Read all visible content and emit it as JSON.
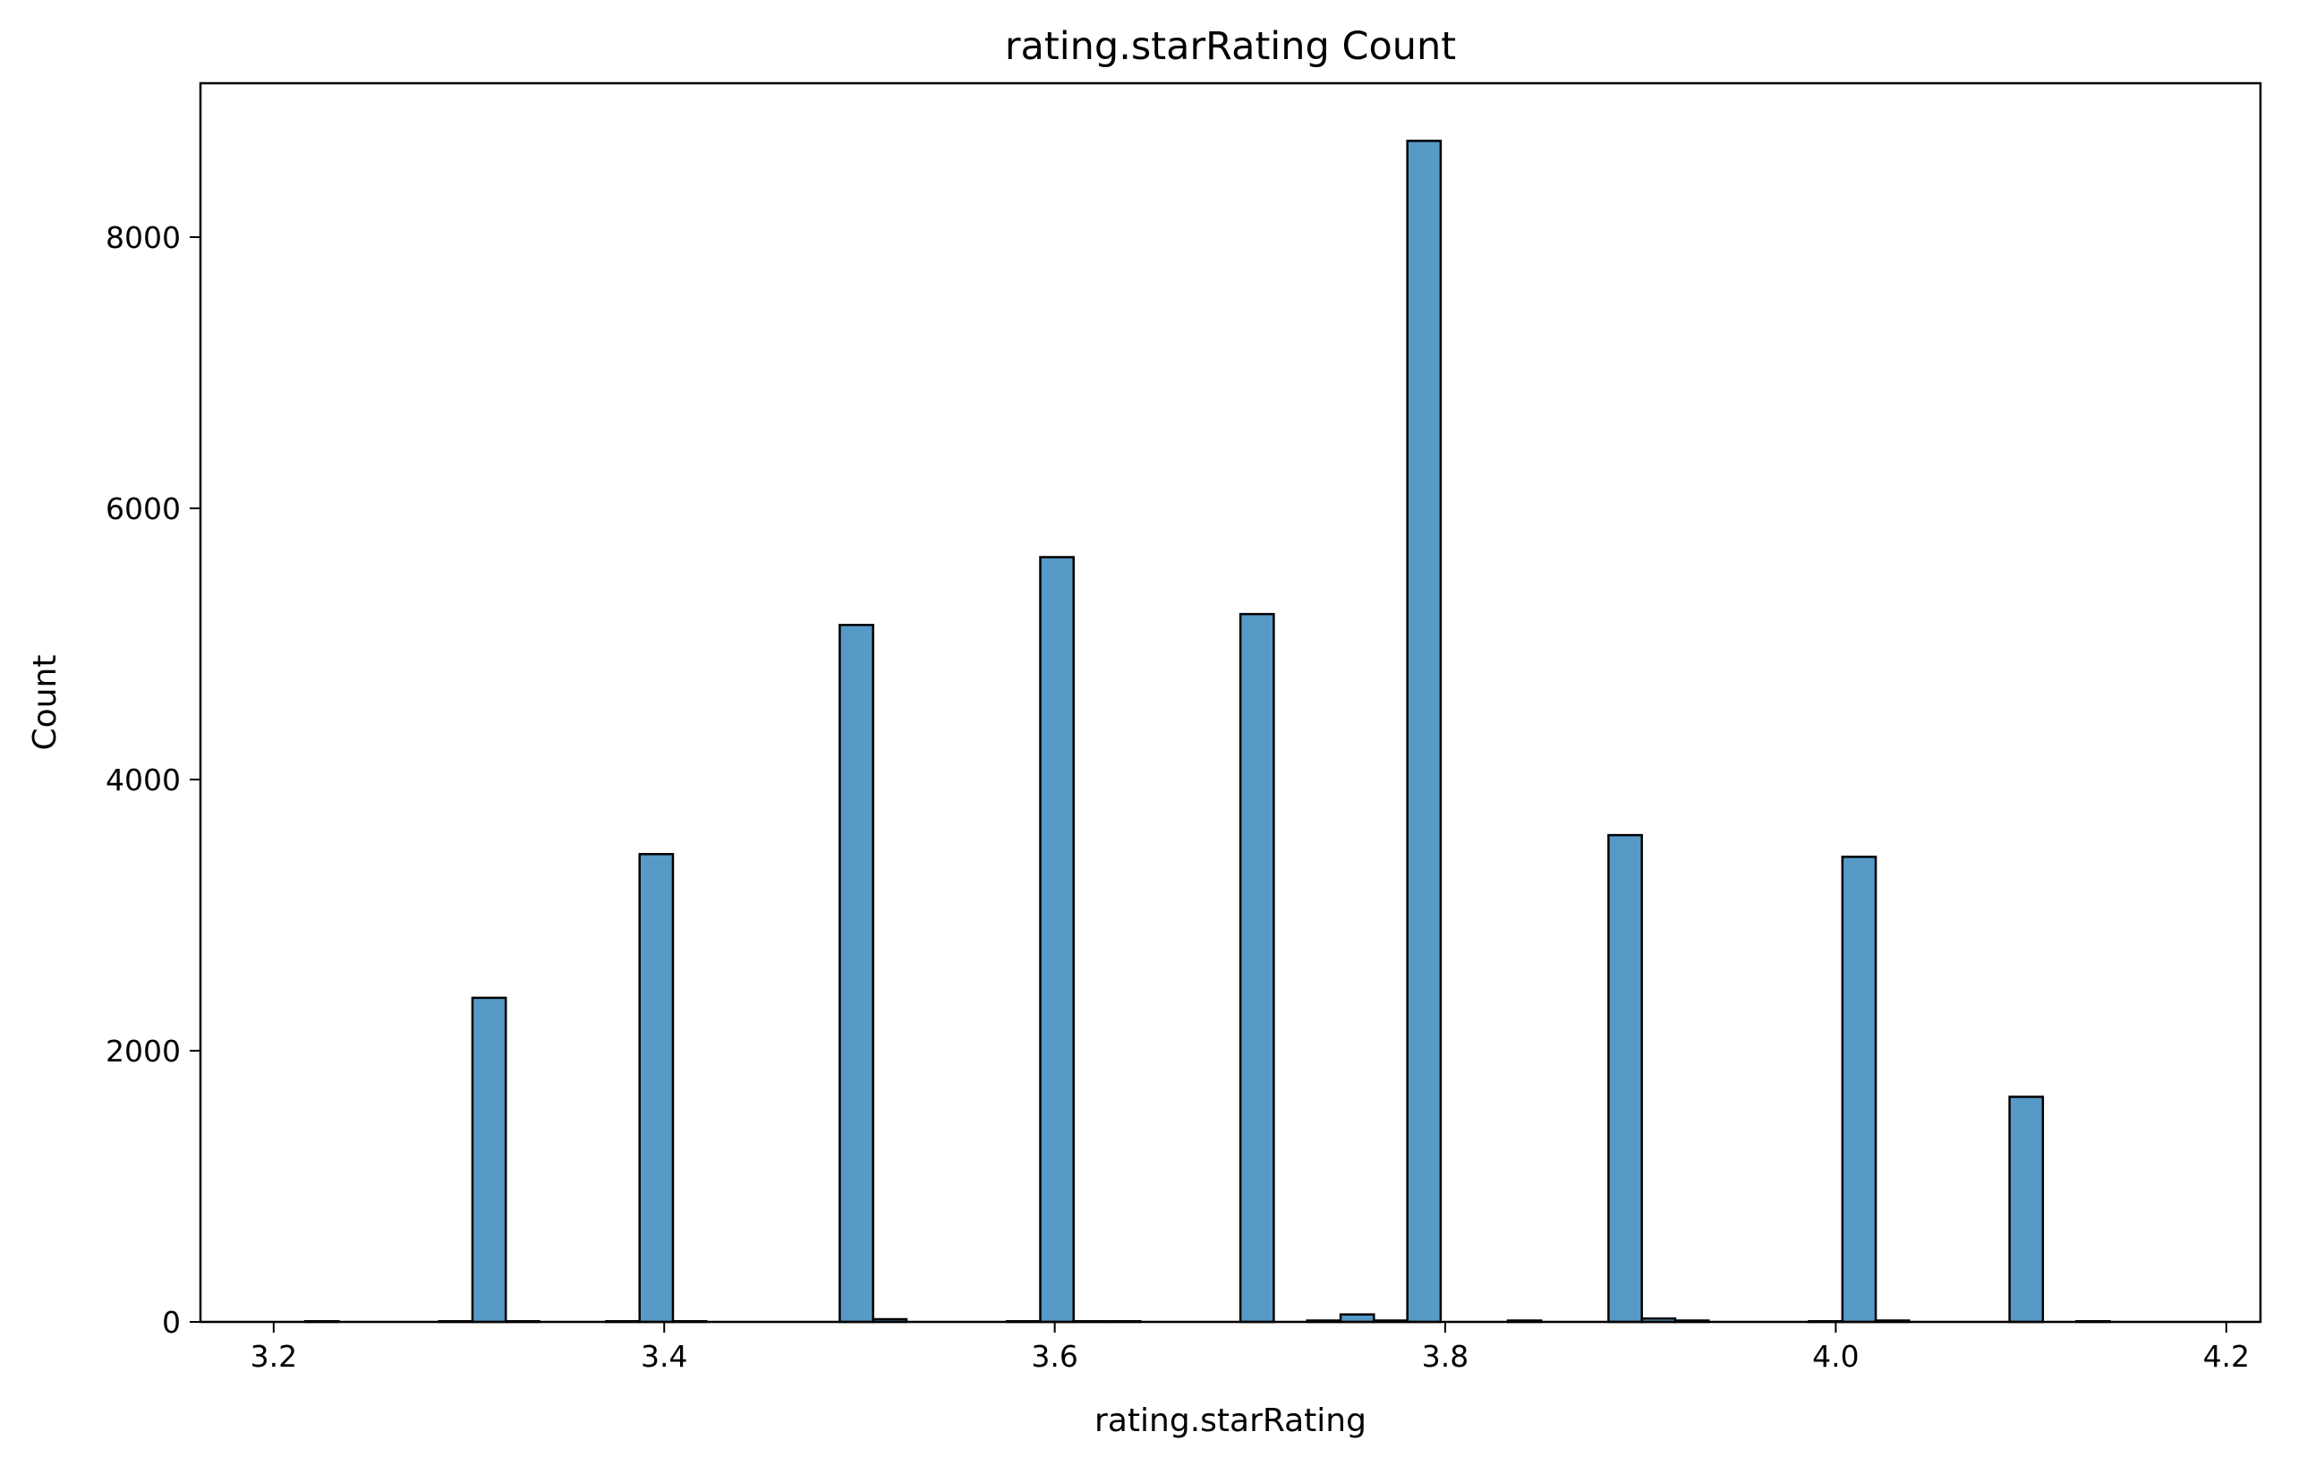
{
  "chart_data": {
    "type": "bar",
    "title": "rating.starRating Count",
    "xlabel": "rating.starRating",
    "ylabel": "Count",
    "xlim": [
      3.1625,
      4.2175
    ],
    "ylim": [
      0,
      9135
    ],
    "xticks": [
      "3.2",
      "3.4",
      "3.6",
      "3.8",
      "4.0",
      "4.2"
    ],
    "xtick_values": [
      3.2,
      3.4,
      3.6,
      3.8,
      4.0,
      4.2
    ],
    "yticks": [
      "0",
      "2000",
      "4000",
      "6000",
      "8000"
    ],
    "ytick_values": [
      0,
      2000,
      4000,
      6000,
      8000
    ],
    "bin_start": 3.18,
    "bin_end": 4.17,
    "bin_count": 58,
    "bars": [
      {
        "x": 3.2162,
        "count": 5
      },
      {
        "x": 3.2847,
        "count": 5
      },
      {
        "x": 3.3018,
        "count": 2390
      },
      {
        "x": 3.3189,
        "count": 5
      },
      {
        "x": 3.3703,
        "count": 5
      },
      {
        "x": 3.3874,
        "count": 3450
      },
      {
        "x": 3.4045,
        "count": 5
      },
      {
        "x": 3.4899,
        "count": 5140
      },
      {
        "x": 3.507,
        "count": 20
      },
      {
        "x": 3.5755,
        "count": 5
      },
      {
        "x": 3.5926,
        "count": 5640
      },
      {
        "x": 3.6097,
        "count": 5
      },
      {
        "x": 3.6268,
        "count": 5
      },
      {
        "x": 3.6951,
        "count": 5220
      },
      {
        "x": 3.7293,
        "count": 10
      },
      {
        "x": 3.7464,
        "count": 55
      },
      {
        "x": 3.7635,
        "count": 10
      },
      {
        "x": 3.7806,
        "count": 8710
      },
      {
        "x": 3.8321,
        "count": 10
      },
      {
        "x": 3.8836,
        "count": 3590
      },
      {
        "x": 3.9007,
        "count": 25
      },
      {
        "x": 3.9178,
        "count": 10
      },
      {
        "x": 3.9863,
        "count": 5
      },
      {
        "x": 4.0034,
        "count": 3430
      },
      {
        "x": 4.0205,
        "count": 10
      },
      {
        "x": 4.089,
        "count": 1660
      },
      {
        "x": 4.1232,
        "count": 5
      }
    ],
    "bar_color": "#5799c7",
    "edge_color": "#000000",
    "grid": false,
    "legend": "none"
  }
}
